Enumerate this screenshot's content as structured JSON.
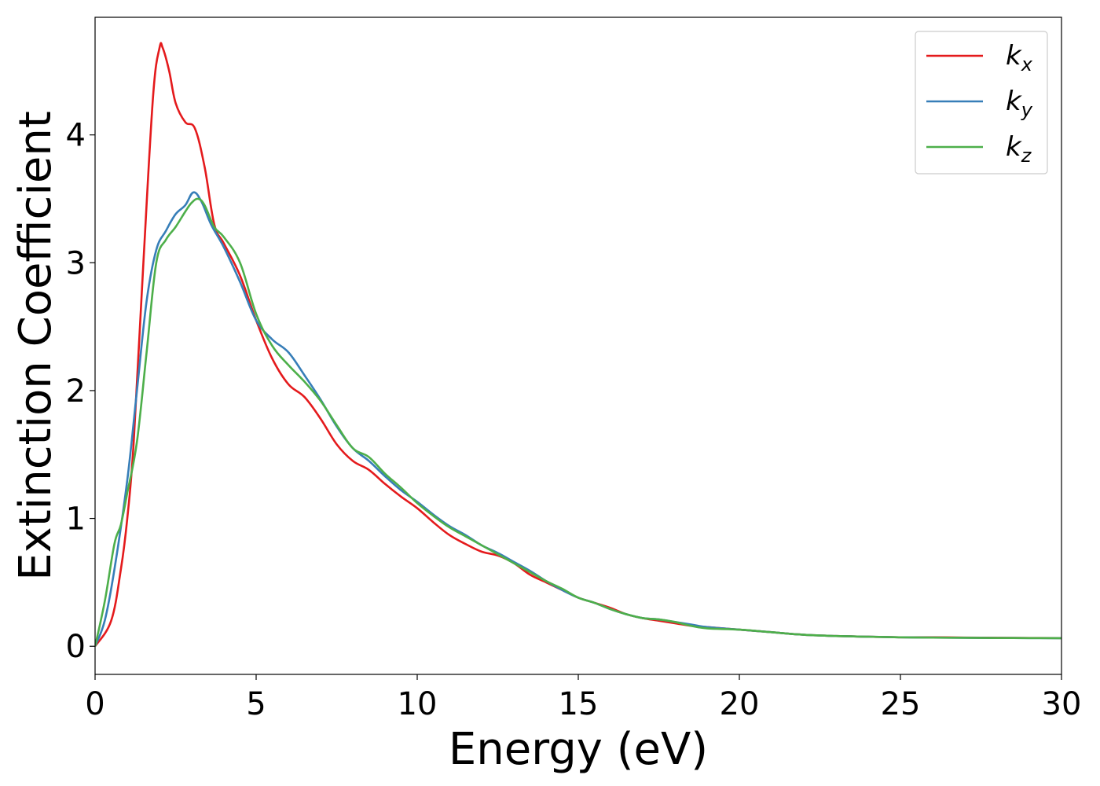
{
  "chart_data": {
    "type": "line",
    "title": "",
    "xlabel": "Energy (eV)",
    "ylabel": "Extinction Coefficient",
    "xlim": [
      0,
      30
    ],
    "ylim": [
      -0.22,
      4.92
    ],
    "xticks": [
      0,
      5,
      10,
      15,
      20,
      25,
      30
    ],
    "yticks": [
      0,
      1,
      2,
      3,
      4
    ],
    "grid": false,
    "legend_position": "top-right",
    "series": [
      {
        "name": "k_x",
        "name_base": "k",
        "name_sub": "x",
        "color": "#e41a1c",
        "x": [
          0,
          0.5,
          0.8,
          1.0,
          1.2,
          1.5,
          1.8,
          2.0,
          2.1,
          2.3,
          2.5,
          2.8,
          3.1,
          3.4,
          3.7,
          4.0,
          4.5,
          5.0,
          5.5,
          6.0,
          6.5,
          7.0,
          7.5,
          8.0,
          8.5,
          9.0,
          9.5,
          10.0,
          10.5,
          11.0,
          11.5,
          12.0,
          12.5,
          13.0,
          13.5,
          14.0,
          14.5,
          15.0,
          15.5,
          16.0,
          16.5,
          17.0,
          17.5,
          18.0,
          18.5,
          19.0,
          20.0,
          21.0,
          22.0,
          23.0,
          24.0,
          25.0,
          26.0,
          27.0,
          28.0,
          29.0,
          30.0
        ],
        "y": [
          0,
          0.2,
          0.6,
          1.0,
          1.6,
          3.0,
          4.3,
          4.68,
          4.68,
          4.5,
          4.25,
          4.1,
          4.05,
          3.75,
          3.3,
          3.15,
          2.9,
          2.55,
          2.25,
          2.05,
          1.95,
          1.78,
          1.58,
          1.45,
          1.38,
          1.27,
          1.17,
          1.08,
          0.97,
          0.87,
          0.8,
          0.74,
          0.71,
          0.65,
          0.56,
          0.5,
          0.44,
          0.38,
          0.34,
          0.3,
          0.25,
          0.22,
          0.2,
          0.18,
          0.16,
          0.15,
          0.13,
          0.11,
          0.09,
          0.08,
          0.075,
          0.07,
          0.07,
          0.068,
          0.066,
          0.065,
          0.064
        ]
      },
      {
        "name": "k_y",
        "name_base": "k",
        "name_sub": "y",
        "color": "#377eb8",
        "x": [
          0,
          0.3,
          0.6,
          1.0,
          1.3,
          1.6,
          1.9,
          2.2,
          2.5,
          2.8,
          3.05,
          3.3,
          3.6,
          4.0,
          4.5,
          5.0,
          5.5,
          6.0,
          6.5,
          7.0,
          7.5,
          8.0,
          8.5,
          9.0,
          9.5,
          10.0,
          10.5,
          11.0,
          11.5,
          12.0,
          12.5,
          13.0,
          13.5,
          14.0,
          14.5,
          15.0,
          15.5,
          16.0,
          16.5,
          17.0,
          17.5,
          18.0,
          18.5,
          19.0,
          20.0,
          21.0,
          22.0,
          23.0,
          24.0,
          25.0,
          26.0,
          27.0,
          28.0,
          29.0,
          30.0
        ],
        "y": [
          0,
          0.2,
          0.6,
          1.3,
          2.0,
          2.7,
          3.1,
          3.25,
          3.38,
          3.45,
          3.55,
          3.48,
          3.3,
          3.12,
          2.85,
          2.55,
          2.4,
          2.3,
          2.12,
          1.93,
          1.72,
          1.55,
          1.45,
          1.33,
          1.22,
          1.13,
          1.03,
          0.94,
          0.87,
          0.79,
          0.73,
          0.66,
          0.59,
          0.51,
          0.44,
          0.38,
          0.34,
          0.29,
          0.25,
          0.22,
          0.21,
          0.19,
          0.17,
          0.15,
          0.13,
          0.11,
          0.09,
          0.08,
          0.075,
          0.07,
          0.068,
          0.066,
          0.065,
          0.064,
          0.063
        ]
      },
      {
        "name": "k_z",
        "name_base": "k",
        "name_sub": "z",
        "color": "#4daf4a",
        "x": [
          0,
          0.3,
          0.6,
          0.8,
          1.0,
          1.3,
          1.6,
          1.9,
          2.2,
          2.5,
          2.8,
          3.0,
          3.2,
          3.4,
          3.7,
          4.0,
          4.5,
          5.0,
          5.5,
          6.0,
          6.5,
          7.0,
          7.5,
          8.0,
          8.5,
          9.0,
          9.5,
          10.0,
          10.5,
          11.0,
          11.5,
          12.0,
          12.5,
          13.0,
          13.5,
          14.0,
          14.5,
          15.0,
          15.5,
          16.0,
          16.5,
          17.0,
          17.5,
          18.0,
          18.5,
          19.0,
          20.0,
          21.0,
          22.0,
          23.0,
          24.0,
          25.0,
          26.0,
          27.0,
          28.0,
          29.0,
          30.0
        ],
        "y": [
          0,
          0.35,
          0.8,
          0.95,
          1.2,
          1.6,
          2.3,
          3.0,
          3.18,
          3.28,
          3.4,
          3.47,
          3.5,
          3.45,
          3.28,
          3.2,
          3.0,
          2.6,
          2.35,
          2.2,
          2.07,
          1.92,
          1.73,
          1.55,
          1.48,
          1.35,
          1.24,
          1.12,
          1.02,
          0.93,
          0.86,
          0.79,
          0.72,
          0.65,
          0.58,
          0.51,
          0.45,
          0.38,
          0.34,
          0.29,
          0.25,
          0.22,
          0.21,
          0.19,
          0.16,
          0.14,
          0.13,
          0.11,
          0.09,
          0.08,
          0.075,
          0.07,
          0.068,
          0.066,
          0.065,
          0.064,
          0.063
        ]
      }
    ]
  }
}
